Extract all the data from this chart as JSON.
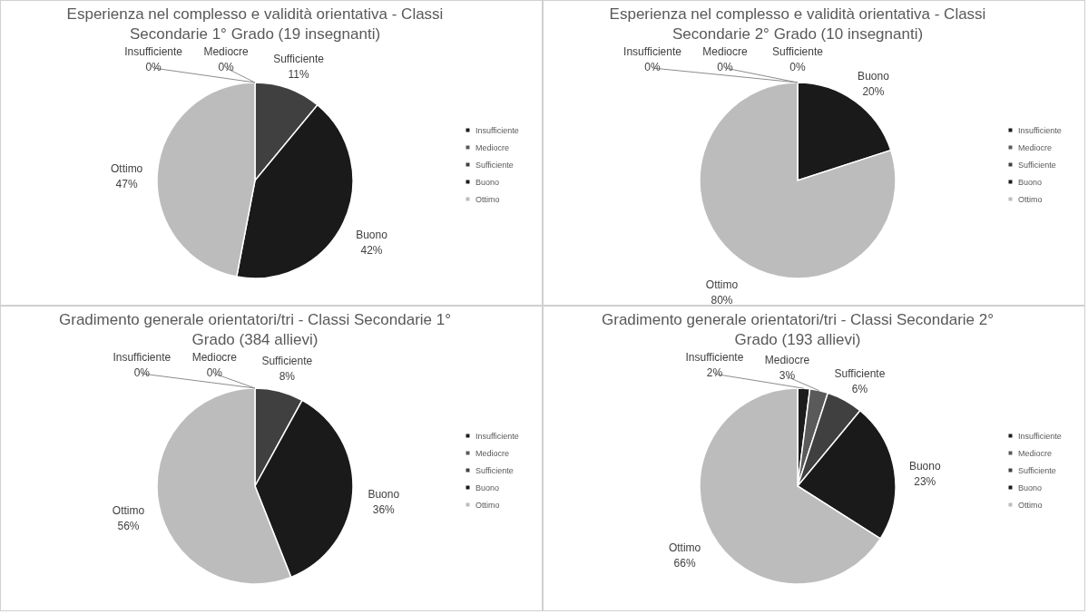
{
  "chart_data": [
    {
      "type": "pie",
      "title": "Esperienza nel complesso e validità orientativa - Classi Secondarie 1° Grado (19 insegnanti)",
      "categories": [
        "Insufficiente",
        "Mediocre",
        "Sufficiente",
        "Buono",
        "Ottimo"
      ],
      "values": [
        0,
        0,
        11,
        42,
        47
      ],
      "value_labels": [
        "0%",
        "0%",
        "11%",
        "42%",
        "47%"
      ],
      "colors": [
        "#1c1c1c",
        "#5a5a5a",
        "#404040",
        "#1a1a1a",
        "#bcbcbc"
      ],
      "legend": "right"
    },
    {
      "type": "pie",
      "title": "Esperienza nel complesso e validità orientativa - Classi Secondarie 2° Grado (10 insegnanti)",
      "categories": [
        "Insufficiente",
        "Mediocre",
        "Sufficiente",
        "Buono",
        "Ottimo"
      ],
      "values": [
        0,
        0,
        0,
        20,
        80
      ],
      "value_labels": [
        "0%",
        "0%",
        "0%",
        "20%",
        "80%"
      ],
      "colors": [
        "#1c1c1c",
        "#5a5a5a",
        "#404040",
        "#1a1a1a",
        "#bcbcbc"
      ],
      "legend": "right"
    },
    {
      "type": "pie",
      "title": "Gradimento generale orientatori/tri - Classi Secondarie 1° Grado (384 allievi)",
      "categories": [
        "Insufficiente",
        "Mediocre",
        "Sufficiente",
        "Buono",
        "Ottimo"
      ],
      "values": [
        0,
        0,
        8,
        36,
        56
      ],
      "value_labels": [
        "0%",
        "0%",
        "8%",
        "36%",
        "56%"
      ],
      "colors": [
        "#1c1c1c",
        "#5a5a5a",
        "#404040",
        "#1a1a1a",
        "#bcbcbc"
      ],
      "legend": "right"
    },
    {
      "type": "pie",
      "title": "Gradimento generale orientatori/tri - Classi Secondarie 2° Grado (193 allievi)",
      "categories": [
        "Insufficiente",
        "Mediocre",
        "Sufficiente",
        "Buono",
        "Ottimo"
      ],
      "values": [
        2,
        3,
        6,
        23,
        66
      ],
      "value_labels": [
        "2%",
        "3%",
        "6%",
        "23%",
        "66%"
      ],
      "colors": [
        "#1c1c1c",
        "#5a5a5a",
        "#404040",
        "#1a1a1a",
        "#bcbcbc"
      ],
      "legend": "right"
    }
  ]
}
